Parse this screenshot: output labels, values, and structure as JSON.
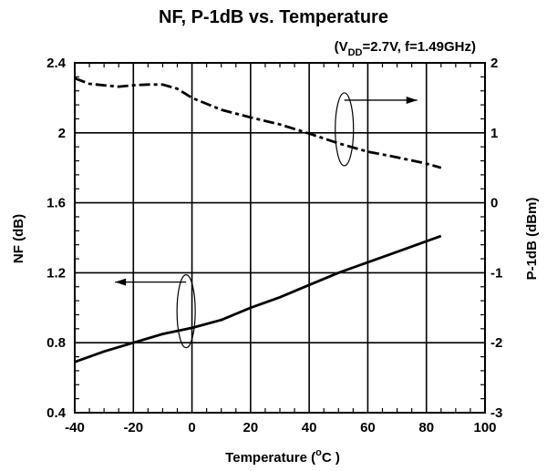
{
  "chart_data": {
    "type": "line",
    "title": "NF, P-1dB vs. Temperature",
    "subtitle": {
      "prefix": "(V",
      "sub": "DD",
      "suffix": "=2.7V, f=1.49GHz)"
    },
    "xlabel": {
      "main": "Temperature (",
      "degree": "o",
      "unit": "C )"
    },
    "ylabel_left": "NF (dB)",
    "ylabel_right": "P-1dB (dBm)",
    "xlim": [
      -40,
      100
    ],
    "ylim_left": [
      0.4,
      2.4
    ],
    "ylim_right": [
      -3,
      2
    ],
    "x_ticks": [
      -40,
      -20,
      0,
      20,
      40,
      60,
      80,
      100
    ],
    "y_ticks_left": [
      "0.4",
      "0.8",
      "1.2",
      "1.6",
      "2",
      "2.4"
    ],
    "y_ticks_right": [
      "-3",
      "-2",
      "-1",
      "0",
      "1",
      "2"
    ],
    "grid": true,
    "series": [
      {
        "axis": "left",
        "line_style": "solid",
        "color": "#000000",
        "x": [
          -40,
          -30,
          -20,
          -10,
          0,
          10,
          20,
          30,
          40,
          50,
          60,
          70,
          80,
          85
        ],
        "values": [
          0.69,
          0.75,
          0.8,
          0.85,
          0.885,
          0.93,
          1.0,
          1.06,
          1.13,
          1.2,
          1.26,
          1.32,
          1.38,
          1.41
        ]
      },
      {
        "axis": "right",
        "line_style": "dash-dot",
        "color": "#000000",
        "x": [
          -40,
          -35,
          -30,
          -25,
          -20,
          -15,
          -10,
          -5,
          0,
          10,
          20,
          30,
          40,
          50,
          60,
          70,
          80,
          85
        ],
        "values": [
          1.78,
          1.7,
          1.68,
          1.66,
          1.68,
          1.69,
          1.69,
          1.63,
          1.5,
          1.33,
          1.22,
          1.12,
          0.99,
          0.85,
          0.73,
          0.65,
          0.56,
          0.5
        ]
      }
    ],
    "annotations": [
      {
        "type": "ellipse-arrow",
        "series_axis": "right",
        "center": [
          52,
          2.02
        ],
        "arrow_to": "right"
      },
      {
        "type": "ellipse-arrow",
        "series_axis": "left",
        "center": [
          -2,
          0.98
        ],
        "arrow_to": "left"
      }
    ]
  }
}
